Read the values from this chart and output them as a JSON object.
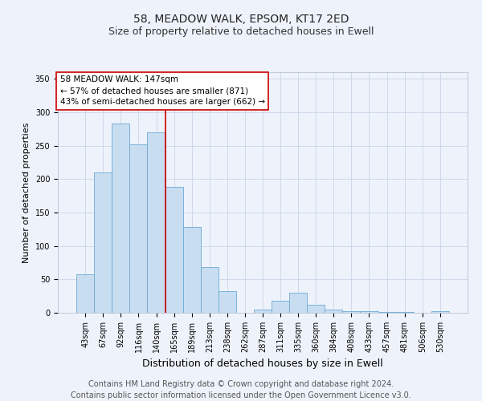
{
  "title_main": "58, MEADOW WALK, EPSOM, KT17 2ED",
  "title_sub": "Size of property relative to detached houses in Ewell",
  "xlabel": "Distribution of detached houses by size in Ewell",
  "ylabel": "Number of detached properties",
  "categories": [
    "43sqm",
    "67sqm",
    "92sqm",
    "116sqm",
    "140sqm",
    "165sqm",
    "189sqm",
    "213sqm",
    "238sqm",
    "262sqm",
    "287sqm",
    "311sqm",
    "335sqm",
    "360sqm",
    "384sqm",
    "408sqm",
    "433sqm",
    "457sqm",
    "481sqm",
    "506sqm",
    "530sqm"
  ],
  "values": [
    58,
    210,
    283,
    252,
    270,
    188,
    128,
    68,
    33,
    0,
    5,
    18,
    30,
    12,
    5,
    2,
    2,
    1,
    1,
    0,
    3
  ],
  "bar_color": "#c9ddf0",
  "bar_edge_color": "#6aaad4",
  "bar_linewidth": 0.6,
  "grid_color": "#c8d4e8",
  "bg_color": "#eef3fb",
  "property_line_x": 4.5,
  "property_label": "58 MEADOW WALK: 147sqm",
  "annotation_line1": "← 57% of detached houses are smaller (871)",
  "annotation_line2": "43% of semi-detached houses are larger (662) →",
  "annotation_box_color": "#ffffff",
  "annotation_border_color": "#cc0000",
  "vline_color": "#cc0000",
  "ylim": [
    0,
    360
  ],
  "yticks": [
    0,
    50,
    100,
    150,
    200,
    250,
    300,
    350
  ],
  "footer": "Contains HM Land Registry data © Crown copyright and database right 2024.\nContains public sector information licensed under the Open Government Licence v3.0.",
  "footer_fontsize": 7,
  "title_fontsize": 10,
  "subtitle_fontsize": 9,
  "xlabel_fontsize": 9,
  "ylabel_fontsize": 8,
  "tick_fontsize": 7,
  "annotation_fontsize": 7.5
}
